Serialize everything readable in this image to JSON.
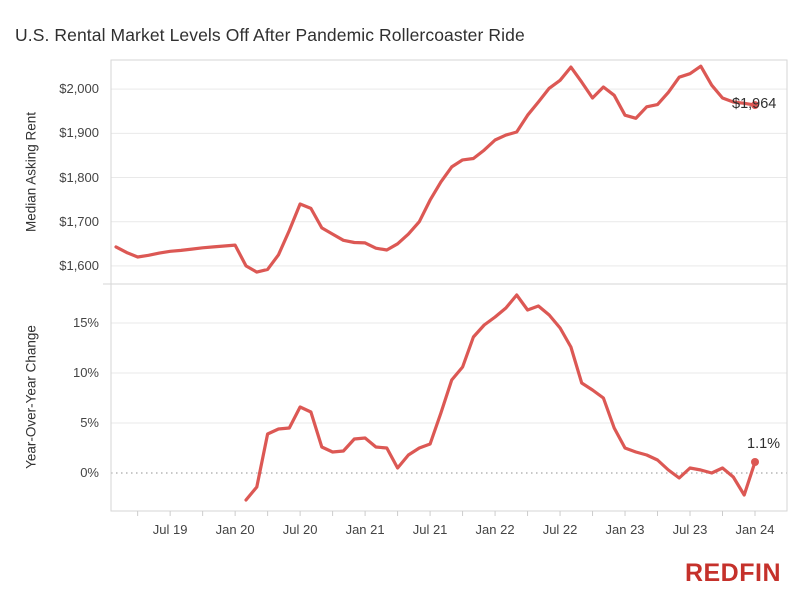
{
  "title": "U.S. Rental Market Levels Off After Pandemic Rollercoaster Ride",
  "branding": {
    "logo_text": "REDFIN",
    "logo_color": "#c5312b"
  },
  "colors": {
    "line": "#dc5854",
    "grid": "#e9e9e9",
    "panel_border": "#d6d6d6",
    "zero_line": "#b5b5b5",
    "minor_tick": "#cccccc",
    "text": "#303030",
    "tick_text": "#444444"
  },
  "x_axis": {
    "tick_labels": [
      "Jul 19",
      "Jan 20",
      "Jul 20",
      "Jan 21",
      "Jul 21",
      "Jan 22",
      "Jul 22",
      "Jan 23",
      "Jul 23",
      "Jan 24"
    ],
    "minor_tick_interval_months": 3
  },
  "chart_data": [
    {
      "type": "line",
      "name": "median-asking-rent",
      "ylabel": "Median Asking Rent",
      "frequency": "monthly",
      "start_month": "Feb 2019",
      "end_month": "Jan 2024",
      "x_start_index": 0,
      "ylim": [
        1559,
        2066
      ],
      "y_tick_values": [
        2000,
        1900,
        1800,
        1700,
        1600
      ],
      "y_tick_labels": [
        "$2,000",
        "$1,900",
        "$1,800",
        "$1,700",
        "$1,600"
      ],
      "grid": true,
      "legend": "none",
      "end_label": "$1,964",
      "end_value": 1964,
      "values": [
        1643,
        1630,
        1620,
        1624,
        1629,
        1633,
        1635,
        1638,
        1641,
        1643,
        1645,
        1647,
        1600,
        1586,
        1592,
        1625,
        1680,
        1740,
        1730,
        1686,
        1672,
        1658,
        1653,
        1652,
        1640,
        1636,
        1650,
        1672,
        1700,
        1749,
        1790,
        1824,
        1840,
        1843,
        1862,
        1885,
        1896,
        1903,
        1941,
        1971,
        2002,
        2020,
        2050,
        2016,
        1980,
        2005,
        1986,
        1941,
        1934,
        1960,
        1965,
        1993,
        2027,
        2035,
        2052,
        2009,
        1980,
        1971,
        1968,
        1964
      ]
    },
    {
      "type": "line",
      "name": "year-over-year-change",
      "ylabel": "Year-Over-Year Change",
      "frequency": "monthly",
      "start_month": "Feb 2020",
      "end_month": "Jan 2024",
      "x_start_index": 12,
      "ylim": [
        -3.8,
        18.9
      ],
      "y_tick_values": [
        15,
        10,
        5,
        0
      ],
      "y_tick_labels": [
        "15%",
        "10%",
        "5%",
        "0%"
      ],
      "grid": true,
      "legend": "none",
      "zero_line_style": "dotted",
      "end_label": "1.1%",
      "end_value": 1.1,
      "values": [
        -2.7,
        -1.4,
        3.9,
        4.4,
        4.5,
        6.6,
        6.1,
        2.6,
        2.1,
        2.2,
        3.4,
        3.5,
        2.6,
        2.5,
        0.5,
        1.8,
        2.5,
        2.9,
        6.0,
        9.3,
        10.6,
        13.6,
        14.8,
        15.6,
        16.5,
        17.8,
        16.3,
        16.7,
        15.8,
        14.5,
        12.6,
        9.0,
        8.3,
        7.5,
        4.5,
        2.5,
        2.1,
        1.8,
        1.3,
        0.3,
        -0.5,
        0.5,
        0.3,
        0.0,
        0.5,
        -0.4,
        -2.2,
        1.1
      ]
    }
  ]
}
